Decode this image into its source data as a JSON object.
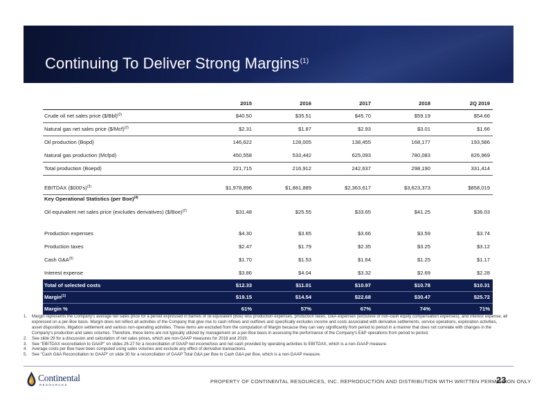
{
  "slide": {
    "title": "Continuing To Deliver Strong Margins",
    "title_note": "(1)",
    "page_number": "23",
    "footer_text": "PROPERTY OF CONTINENTAL RESOURCES, INC. REPRODUCTION AND DISTRIBUTION WITH WRITTEN PERMISSION ONLY",
    "logo": {
      "name": "Continental",
      "sub": "RESOURCES",
      "icon": "oil-drop-icon",
      "color": "#1d2a5a",
      "accent": "#d8a227"
    }
  },
  "colors": {
    "header_navy": "#14235a",
    "table_highlight": "#0f1d4e"
  },
  "table": {
    "columns": [
      "2015",
      "2016",
      "2017",
      "2018",
      "2Q 2019"
    ],
    "rows": [
      {
        "label": "Crude oil net sales price ($/Bbl)",
        "note": "(2)",
        "values": [
          "$40.50",
          "$35.51",
          "$45.70",
          "$59.19",
          "$54.66"
        ]
      },
      {
        "label": "Natural gas net sales price ($/Mcf)",
        "note": "(2)",
        "values": [
          "$2.31",
          "$1.87",
          "$2.93",
          "$3.01",
          "$1.66"
        ]
      },
      {
        "label": "Oil production (Bopd)",
        "note": "",
        "values": [
          "146,622",
          "128,005",
          "138,455",
          "168,177",
          "193,586"
        ]
      },
      {
        "label": "Natural gas production (Mcfpd)",
        "note": "",
        "values": [
          "450,558",
          "533,442",
          "625,093",
          "780,083",
          "826,969"
        ]
      },
      {
        "label": "Total production (Boepd)",
        "note": "",
        "values": [
          "221,715",
          "216,912",
          "242,637",
          "298,190",
          "331,414"
        ]
      },
      {
        "label": "EBITDAX ($000's)",
        "note": "(3)",
        "values": [
          "$1,978,896",
          "$1,881,889",
          "$2,363,617",
          "$3,623,373",
          "$858,019"
        ]
      },
      {
        "label": "Oil equivalent net sales price (excludes derivatives) ($/Boe)",
        "note": "(2)",
        "values": [
          "$31.48",
          "$25.55",
          "$33.65",
          "$41.25",
          "$36.03"
        ]
      },
      {
        "label": "Production expenses",
        "note": "",
        "values": [
          "$4.30",
          "$3.65",
          "$3.66",
          "$3.59",
          "$3.74"
        ]
      },
      {
        "label": "Production taxes",
        "note": "",
        "values": [
          "$2.47",
          "$1.79",
          "$2.35",
          "$3.25",
          "$3.12"
        ]
      },
      {
        "label": "Cash G&A",
        "note": "(5)",
        "values": [
          "$1.70",
          "$1.53",
          "$1.64",
          "$1.25",
          "$1.17"
        ]
      },
      {
        "label": "Interest expense",
        "note": "",
        "values": [
          "$3.86",
          "$4.04",
          "$3.32",
          "$2.69",
          "$2.28"
        ]
      }
    ],
    "section_label": "Key Operational Statistics (per Boe)",
    "section_note": "(4)",
    "highlight_rows": [
      {
        "label": "Total of selected costs",
        "note": "",
        "values": [
          "$12.33",
          "$11.01",
          "$10.97",
          "$10.78",
          "$10.31"
        ]
      },
      {
        "label": "Margin",
        "note": "(1)",
        "values": [
          "$19.15",
          "$14.54",
          "$22.68",
          "$30.47",
          "$25.72"
        ]
      },
      {
        "label": "Margin %",
        "note": "",
        "values": [
          "61%",
          "57%",
          "67%",
          "74%",
          "71%"
        ]
      }
    ]
  },
  "footnotes": [
    {
      "n": "1.",
      "text": "Margin represents the Company's average net sales price for a period expressed in barrels of oil equivalent (Boe) less production expenses, production taxes, G&A expenses (exclusive of non-cash equity compensation expenses), and interest expense, all expressed on a per-Boe basis. Margin does not reflect all activities of the Company that give rise to cash inflows and outflows and specifically excludes income and costs associated with derivative settlements, service operations, exploration activities, asset dispositions, litigation settlement and various non-operating activities. These items are excluded from the computation of Margin because they can vary significantly from period to period in a manner that does not correlate with changes in the Company's production and sales volumes. Therefore, these items are not typically utilized by management on a per-Boe basis in assessing the performance of the Company's E&P operations from period to period."
    },
    {
      "n": "2.",
      "text": "See slide 29 for a discussion and calculation of net sales prices, which are non-GAAP measures for 2018 and 2019."
    },
    {
      "n": "3.",
      "text": "See \"EBITDAX reconciliation to GAAP\" on slides 26-27 for a reconciliation of GAAP net income/loss and net cash provided by operating activities to EBITDAX, which is a non-GAAP measure."
    },
    {
      "n": "4.",
      "text": "Average costs per Boe have been computed using sales volumes and exclude any effect of derivative transactions."
    },
    {
      "n": "5.",
      "text": "See \"Cash G&A Reconciliation to GAAP\" on slide 30 for a reconciliation of GAAP Total G&A per Boe to Cash G&A per Boe, which is a non-GAAP measure."
    }
  ]
}
